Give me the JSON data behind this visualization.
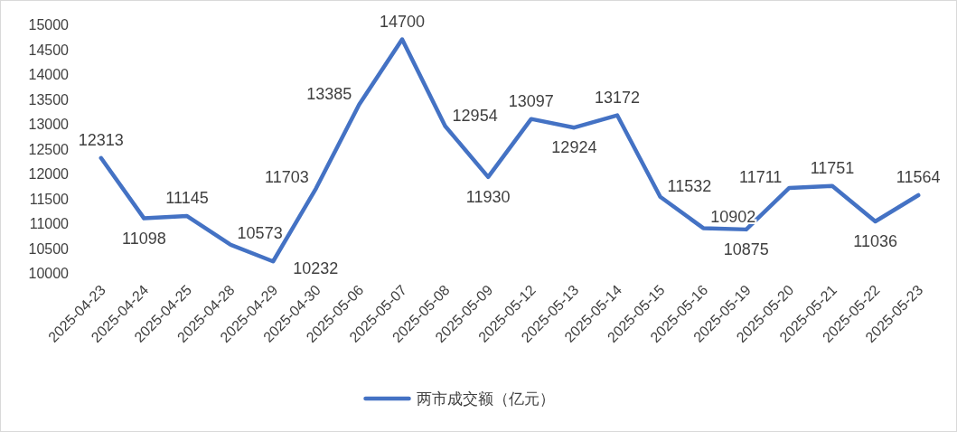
{
  "chart_data": {
    "type": "line",
    "categories": [
      "2025-04-23",
      "2025-04-24",
      "2025-04-25",
      "2025-04-28",
      "2025-04-29",
      "2025-04-30",
      "2025-05-06",
      "2025-05-07",
      "2025-05-08",
      "2025-05-09",
      "2025-05-12",
      "2025-05-13",
      "2025-05-14",
      "2025-05-15",
      "2025-05-16",
      "2025-05-19",
      "2025-05-20",
      "2025-05-21",
      "2025-05-22",
      "2025-05-23"
    ],
    "series": [
      {
        "name": "两市成交额（亿元）",
        "color": "#4472c4",
        "values": [
          12313,
          11098,
          11145,
          10573,
          10232,
          11703,
          13385,
          14700,
          12954,
          11930,
          13097,
          12924,
          13172,
          11532,
          10902,
          10875,
          11711,
          11751,
          11036,
          11564
        ]
      }
    ],
    "ylim": [
      10000,
      15000
    ],
    "yticks": [
      10000,
      10500,
      11000,
      11500,
      12000,
      12500,
      13000,
      13500,
      14000,
      14500,
      15000
    ],
    "data_labels": true,
    "legend": "bottom",
    "marker": "none",
    "line_style": "solid",
    "grid": false
  }
}
